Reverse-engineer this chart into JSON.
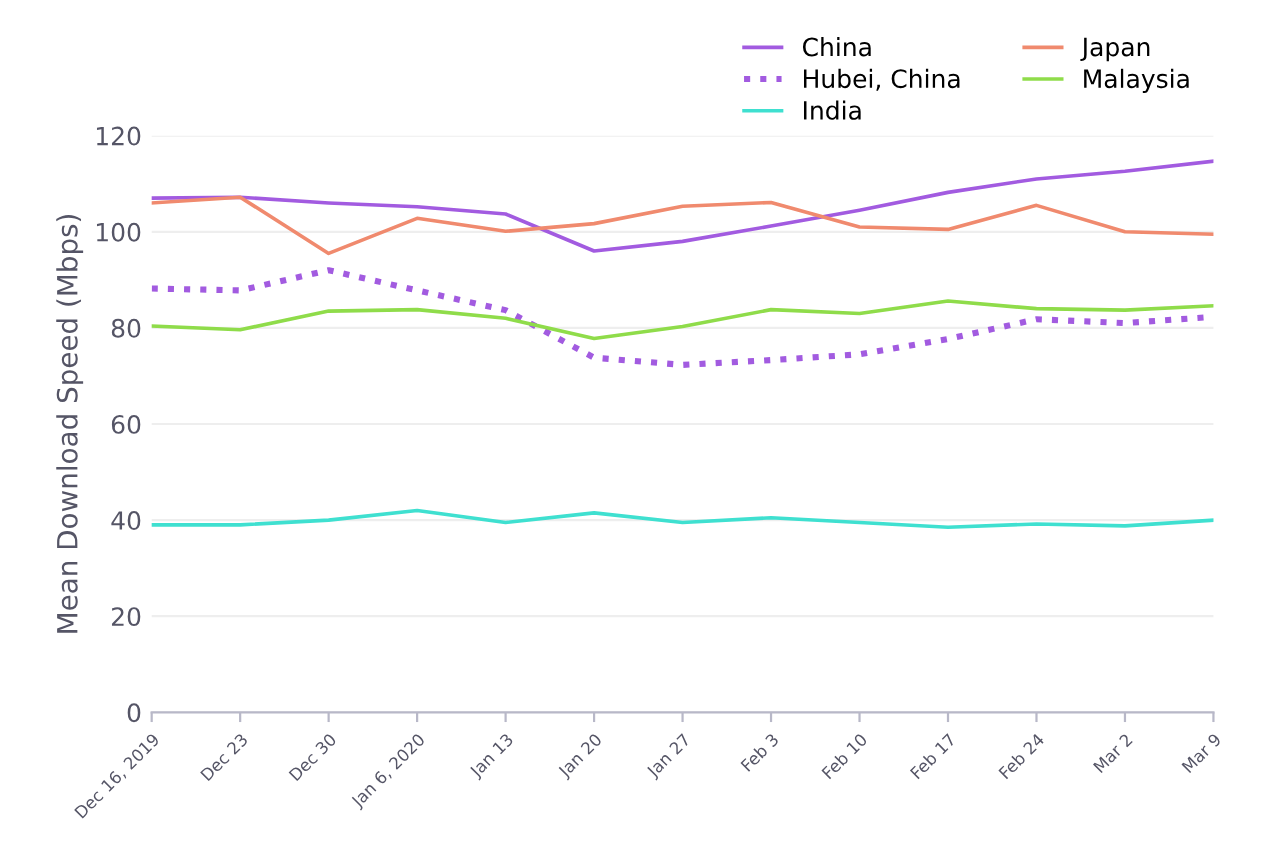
{
  "chart_data": {
    "type": "line",
    "ylabel": "Mean Download Speed (Mbps)",
    "categories": [
      "Dec 16, 2019",
      "Dec 23",
      "Dec 30",
      "Jan 6, 2020",
      "Jan 13",
      "Jan 20",
      "Jan 27",
      "Feb 3",
      "Feb 10",
      "Feb 17",
      "Feb 24",
      "Mar 2",
      "Mar 9"
    ],
    "series": [
      {
        "name": "China",
        "color": "#a25be0",
        "values": [
          107,
          107.2,
          106,
          105.2,
          103.7,
          96,
          98,
          101.2,
          104.5,
          108.2,
          111,
          112.6,
          114.7
        ]
      },
      {
        "name": "Hubei, China",
        "color": "#a25be0",
        "line_style": "dotted",
        "values": [
          88.2,
          87.8,
          92,
          87.8,
          83.7,
          73.8,
          72.3,
          73.3,
          74.5,
          77.7,
          81.8,
          81,
          82.3
        ]
      },
      {
        "name": "India",
        "color": "#3fe0d0",
        "values": [
          39,
          39,
          40,
          42,
          39.5,
          41.5,
          39.5,
          40.5,
          39.5,
          38.5,
          39.2,
          38.8,
          40
        ]
      },
      {
        "name": "Japan",
        "color": "#f08a6e",
        "values": [
          106,
          107.2,
          95.5,
          102.8,
          100.1,
          101.7,
          105.3,
          106.1,
          101,
          100.5,
          105.5,
          100,
          99.5
        ]
      },
      {
        "name": "Malaysia",
        "color": "#8fdc4a",
        "values": [
          80.4,
          79.6,
          83.5,
          83.8,
          82,
          77.8,
          80.3,
          83.8,
          83,
          85.6,
          84,
          83.7,
          84.6
        ]
      }
    ],
    "ylim": [
      0,
      120
    ],
    "yticks": [
      0,
      20,
      40,
      60,
      80,
      100,
      120
    ],
    "grid": "y",
    "legend": "top right",
    "line_style": "solid",
    "marker": "none"
  }
}
